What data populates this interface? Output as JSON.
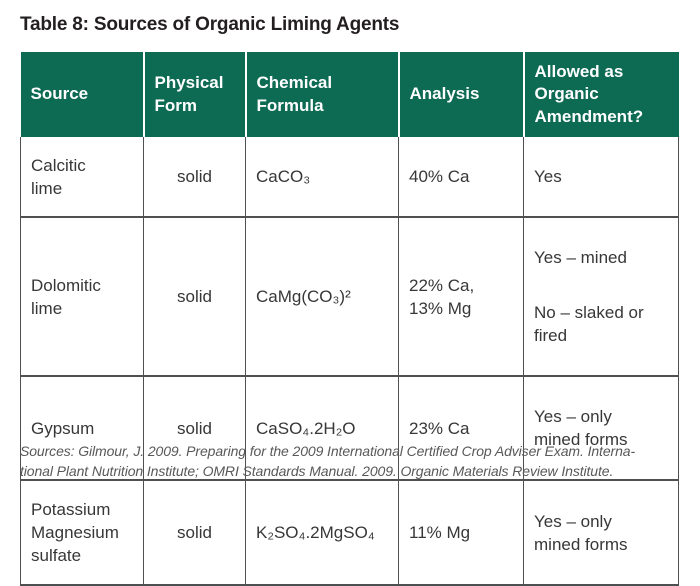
{
  "title": "Table 8: Sources of Organic Liming Agents",
  "colors": {
    "header_green": "#0d6a53",
    "border_gray": "#4f5052",
    "body_text": "#373738",
    "footer_gray": "#58585a",
    "header_text": "#ffffff"
  },
  "table": {
    "headers": [
      "Source",
      "Physical\nForm",
      "Chemical\nFormula",
      "Analysis",
      "Allowed as\nOrganic\nAmendment?"
    ],
    "rows": [
      {
        "source": "Calcitic\nlime",
        "physical_form": "solid",
        "chemical_formula": "CaCO₃",
        "analysis": "40% Ca",
        "allowed_lines": [
          "Yes"
        ]
      },
      {
        "source": "Dolomitic\nlime",
        "physical_form": "solid",
        "chemical_formula": "CaMg(CO₃)²",
        "analysis": "22% Ca,\n13% Mg",
        "allowed_lines": [
          "Yes – mined",
          "No – slaked or\nfired"
        ]
      },
      {
        "source": "Gypsum",
        "physical_form": "solid",
        "chemical_formula": "CaSO₄.2H₂O",
        "analysis": "23% Ca",
        "allowed_lines": [
          "Yes – only\nmined forms"
        ]
      },
      {
        "source": "Potassium\nMagnesium\nsulfate",
        "physical_form": "solid",
        "chemical_formula": "K₂SO₄.2MgSO₄",
        "analysis": "11% Mg",
        "allowed_lines": [
          "Yes – only\nmined forms"
        ]
      }
    ]
  },
  "footer": {
    "lines": [
      "Sources: Gilmour, J. 2009. Preparing for the 2009 International Certified Crop Adviser Exam. Interna-",
      "tional Plant Nutrition Institute; OMRI Standards Manual. 2009. Organic Materials Review Institute."
    ]
  }
}
